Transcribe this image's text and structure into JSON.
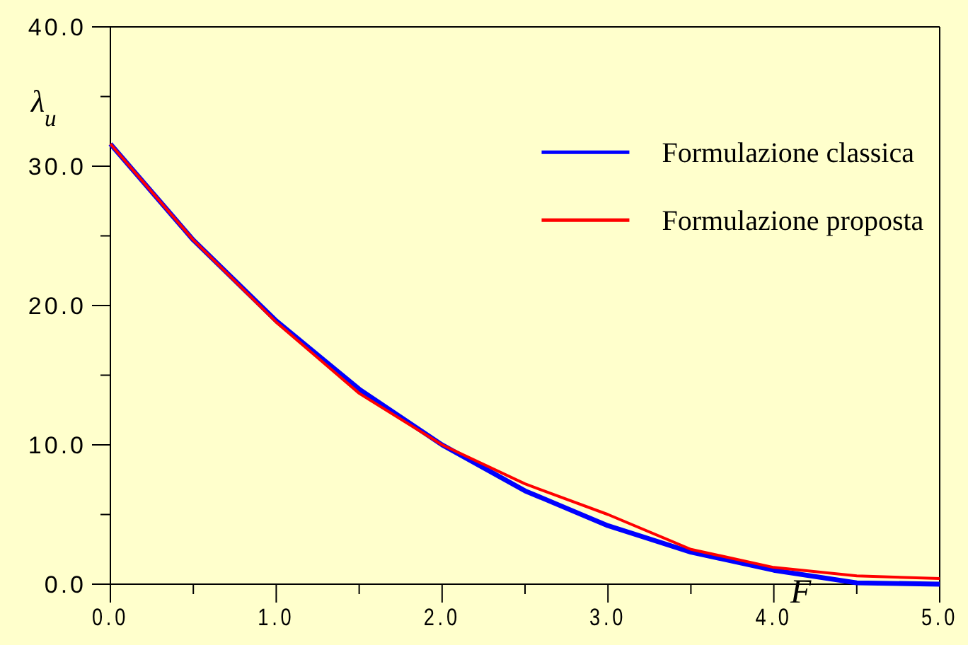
{
  "chart_data": {
    "type": "line",
    "xlabel": "F",
    "ylabel": "λ$_{u}$",
    "x": [
      0,
      0.5,
      1,
      1.5,
      2,
      2.5,
      3,
      3.5,
      4,
      4.5,
      5
    ],
    "series": [
      {
        "name": "Formulazione classica",
        "color": "#0000ff",
        "values": [
          31.6,
          24.7,
          18.9,
          14.0,
          10.0,
          6.7,
          4.2,
          2.3,
          1.0,
          0.1,
          0.0
        ]
      },
      {
        "name": "Formulazione proposta",
        "color": "#ff0000",
        "values": [
          31.6,
          24.7,
          18.8,
          13.7,
          10.0,
          7.2,
          5.0,
          2.5,
          1.2,
          0.6,
          0.4
        ]
      }
    ],
    "xlim": [
      0,
      5
    ],
    "ylim": [
      0,
      40
    ],
    "xticks": [
      {
        "value": 0,
        "label": "0.0"
      },
      {
        "value": 0.5,
        "label": null
      },
      {
        "value": 1,
        "label": "1.0"
      },
      {
        "value": 1.5,
        "label": null
      },
      {
        "value": 2,
        "label": "2.0"
      },
      {
        "value": 2.5,
        "label": null
      },
      {
        "value": 3,
        "label": "3.0"
      },
      {
        "value": 3.5,
        "label": null
      },
      {
        "value": 4,
        "label": "4.0"
      },
      {
        "value": 4.5,
        "label": null
      },
      {
        "value": 5,
        "label": "5.0"
      }
    ],
    "yticks": [
      {
        "value": 0,
        "label": "0.0"
      },
      {
        "value": 5,
        "label": null
      },
      {
        "value": 10,
        "label": "10.0"
      },
      {
        "value": 15,
        "label": null
      },
      {
        "value": 20,
        "label": "20.0"
      },
      {
        "value": 25,
        "label": null
      },
      {
        "value": 30,
        "label": "30.0"
      },
      {
        "value": 35,
        "label": null
      },
      {
        "value": 40,
        "label": "40.0"
      }
    ],
    "grid": false,
    "legend": "top right",
    "line_style": "solid"
  }
}
